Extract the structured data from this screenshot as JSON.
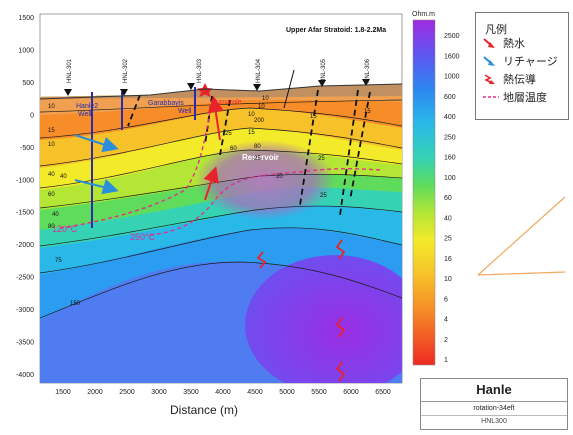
{
  "section": {
    "y_ticks": [
      "1500",
      "1000",
      "500",
      "0",
      "-500",
      "-1000",
      "-1500",
      "-2000",
      "-2500",
      "-3000",
      "-3500",
      "-4000"
    ],
    "x_ticks": [
      "1500",
      "2000",
      "2500",
      "3000",
      "3500",
      "4000",
      "4500",
      "5000",
      "5500",
      "6000",
      "6500"
    ],
    "x_axis_title": "Distance (m)",
    "upper_label": "Upper Afar Stratoid: 1.8-2.2Ma",
    "wells": [
      "HNL-301",
      "HNL-302",
      "HNL-303",
      "HNL-304",
      "HNL-305",
      "HNL-306"
    ],
    "well_annotations": [
      "Hanle2",
      "Well",
      "Garabbayis",
      "Well",
      "Fumarole"
    ],
    "reservoir_label": "Reservoir",
    "temp_labels": [
      "120°C",
      "250°C"
    ],
    "contour_labels": [
      "10",
      "15",
      "10",
      "40",
      "60",
      "40",
      "80",
      "25",
      "10",
      "15",
      "200",
      "10",
      "80",
      "25",
      "10",
      "15",
      "25",
      "40",
      "60",
      "20",
      "25",
      "75",
      "150",
      "15"
    ]
  },
  "colorbar": {
    "unit": "Ohm.m",
    "labels": [
      "2500",
      "1600",
      "1000",
      "600",
      "400",
      "250",
      "160",
      "100",
      "60",
      "40",
      "25",
      "16",
      "10",
      "6",
      "4",
      "2",
      "1"
    ]
  },
  "legend": {
    "title": "凡例",
    "items": [
      "熱水",
      "リチャージ",
      "熱伝導",
      "地層温度"
    ]
  },
  "title_block": {
    "name": "Hanle",
    "subtitle": "rotation-34eft",
    "code": "HNL300"
  },
  "colors": {
    "hot_water_arrow": "#e8232a",
    "recharge_arrow": "#2a8fd8",
    "temperature_line": "#e0308a",
    "callout_line": "#f0a860"
  }
}
